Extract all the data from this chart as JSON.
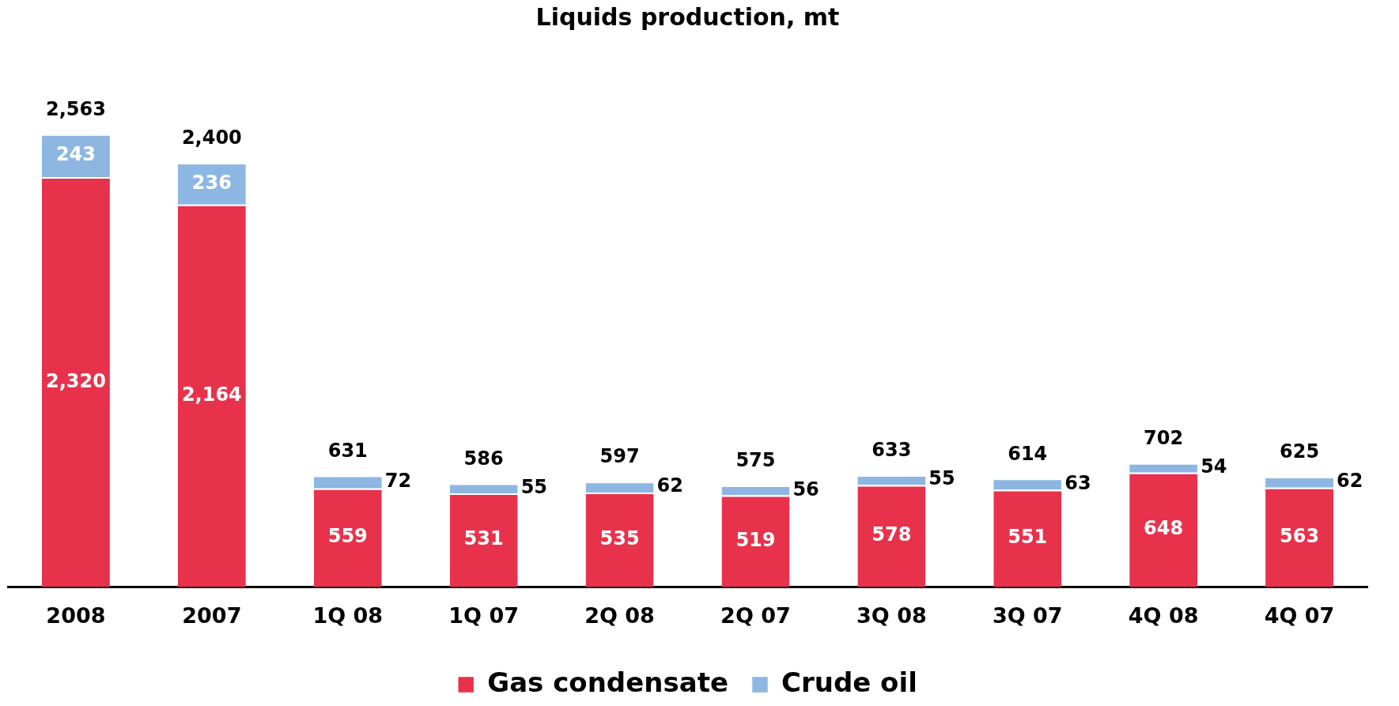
{
  "chart_data": {
    "type": "bar",
    "title": "Liquids production, mt",
    "stacked": true,
    "data_labels": true,
    "tick_labels": "x",
    "grid": false,
    "legend": "bottom",
    "categories": [
      "2008",
      "2007",
      "1Q 08",
      "1Q 07",
      "2Q 08",
      "2Q 07",
      "3Q 08",
      "3Q 07",
      "4Q 08",
      "4Q 07"
    ],
    "series": [
      {
        "name": "Gas condensate",
        "color": "#e8324b",
        "values": [
          2320,
          2164,
          559,
          531,
          535,
          519,
          578,
          551,
          648,
          563
        ],
        "value_labels": [
          "2,320",
          "2,164",
          "559",
          "531",
          "535",
          "519",
          "578",
          "551",
          "648",
          "563"
        ]
      },
      {
        "name": "Crude oil",
        "color": "#8db7e2",
        "values": [
          243,
          236,
          72,
          55,
          62,
          56,
          55,
          63,
          54,
          62
        ],
        "value_labels": [
          "243",
          "236",
          "72",
          "55",
          "62",
          "56",
          "55",
          "63",
          "54",
          "62"
        ]
      }
    ],
    "totals": [
      "2,563",
      "2,400",
      "631",
      "586",
      "597",
      "575",
      "633",
      "614",
      "702",
      "625"
    ]
  }
}
